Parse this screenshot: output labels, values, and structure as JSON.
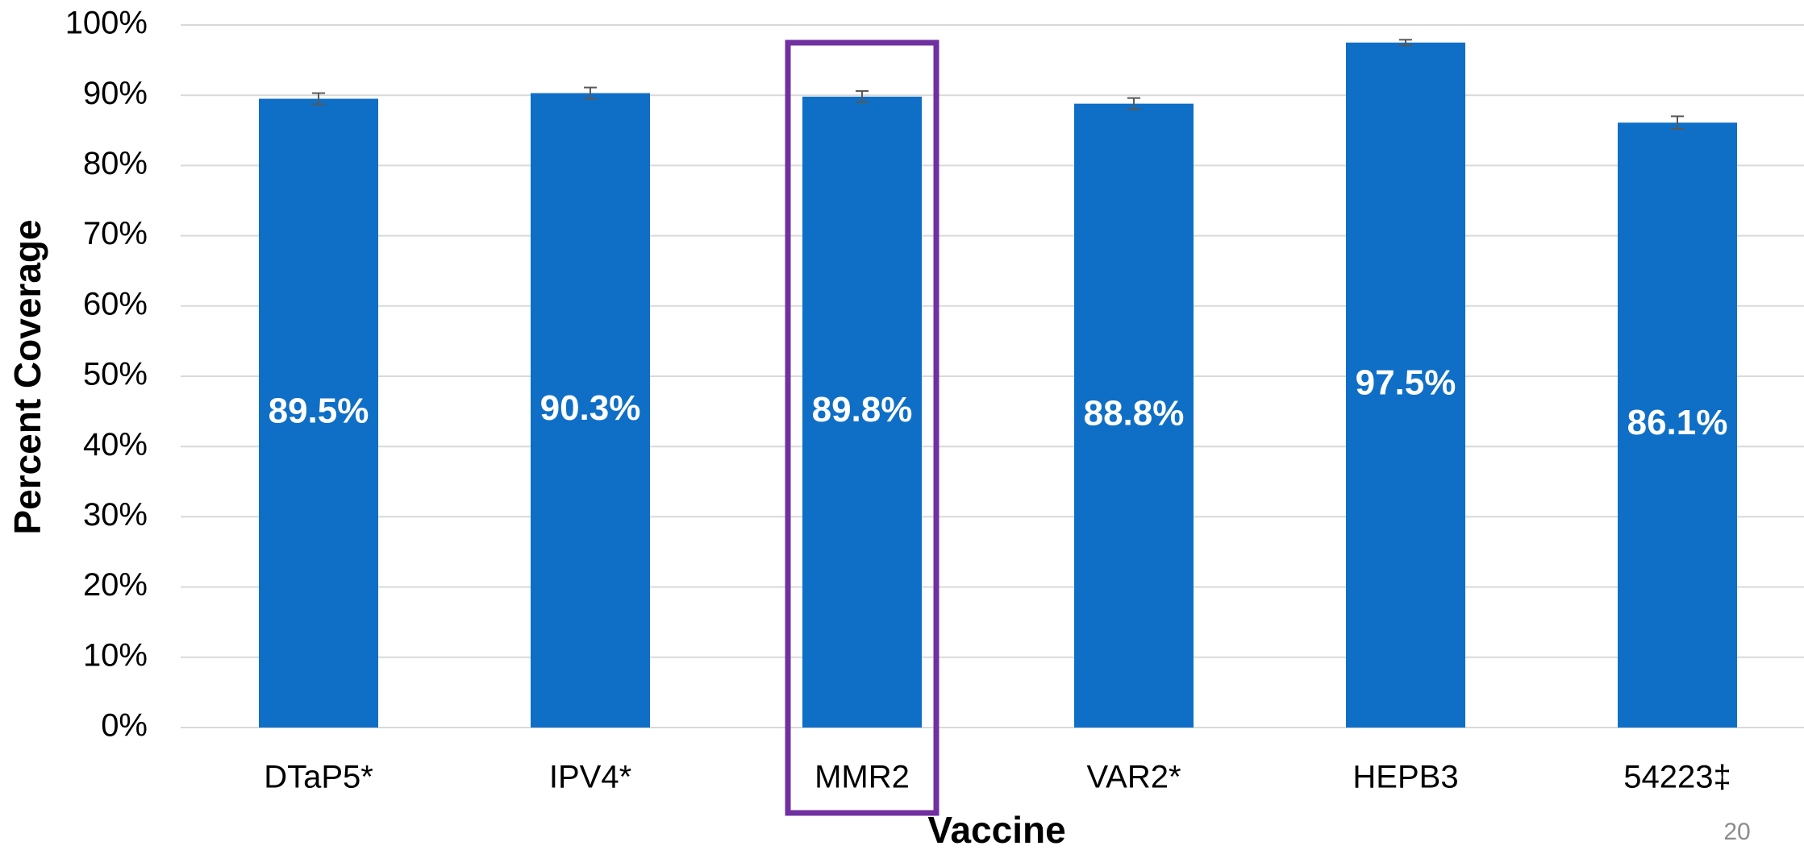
{
  "chart_data": {
    "type": "bar",
    "categories": [
      "DTaP5*",
      "IPV4*",
      "MMR2",
      "VAR2*",
      "HEPB3",
      "54223‡"
    ],
    "values": [
      89.5,
      90.3,
      89.8,
      88.8,
      97.5,
      86.1
    ],
    "value_labels": [
      "89.5%",
      "90.3%",
      "89.8%",
      "88.8%",
      "97.5%",
      "86.1%"
    ],
    "errors": [
      0.8,
      0.8,
      0.8,
      0.8,
      0.4,
      0.9
    ],
    "color": "#0f6fc6",
    "x_label": "Vaccine",
    "y_label": "Percent Coverage",
    "ylim": [
      0,
      100
    ],
    "yticks": [
      {
        "value": 0,
        "label": "0%"
      },
      {
        "value": 10,
        "label": "10%"
      },
      {
        "value": 20,
        "label": "20%"
      },
      {
        "value": 30,
        "label": "30%"
      },
      {
        "value": 40,
        "label": "40%"
      },
      {
        "value": 50,
        "label": "50%"
      },
      {
        "value": 60,
        "label": "60%"
      },
      {
        "value": 70,
        "label": "70%"
      },
      {
        "value": 80,
        "label": "80%"
      },
      {
        "value": 90,
        "label": "90%"
      },
      {
        "value": 100,
        "label": "100%"
      }
    ],
    "grid": true,
    "highlight": 2,
    "highlight_color": "#7030a0"
  },
  "page_number": "20"
}
